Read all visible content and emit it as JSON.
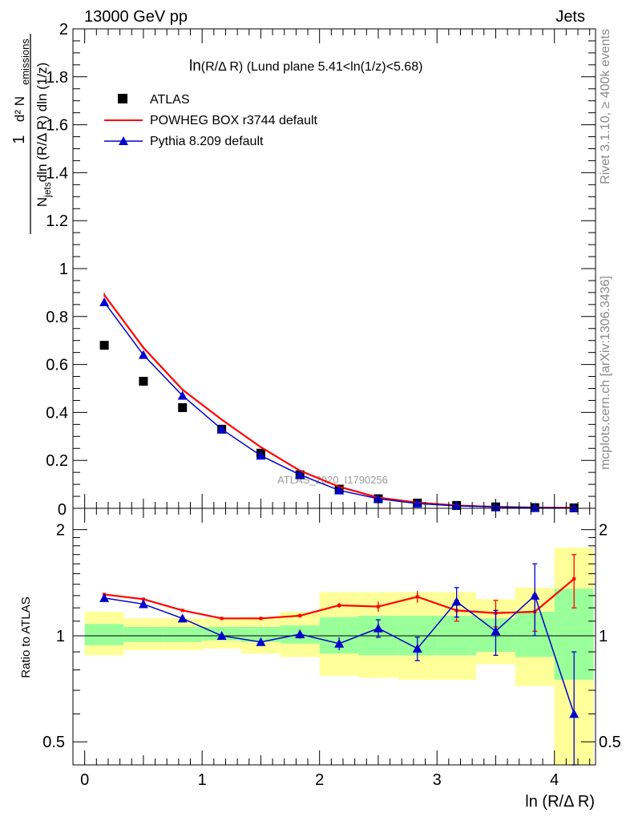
{
  "header": {
    "left": "13000 GeV pp",
    "right": "Jets",
    "side_top": "Rivet 3.1.10, ≥ 400k events",
    "side_bottom": "mcplots.cern.ch [arXiv:1306.3436]"
  },
  "chart_data": [
    {
      "type": "line",
      "panel": "main",
      "title_prefix": "ln",
      "title_rest": "(R/Δ R) (Lund plane 5.41<ln(1/z)<5.68)",
      "xlabel": "ln (R/Δ R)",
      "ylabel": "1/N_jets d²N_emissions / dln(R/Δ R) dln(1/z)",
      "watermark": "ATLAS_2020_I1790256",
      "xlim": [
        -0.1,
        4.35
      ],
      "ylim": [
        0,
        2
      ],
      "yticks": [
        {
          "v": 0.2,
          "label": "0.2"
        },
        {
          "v": 0.4,
          "label": "0.4"
        },
        {
          "v": 0.6,
          "label": "0.6"
        },
        {
          "v": 0.8,
          "label": "0.8"
        },
        {
          "v": 1.0,
          "label": "1"
        },
        {
          "v": 1.2,
          "label": "1.2"
        },
        {
          "v": 1.4,
          "label": "1.4"
        },
        {
          "v": 1.6,
          "label": "1.6"
        },
        {
          "v": 1.8,
          "label": "1.8"
        },
        {
          "v": 2.0,
          "label": "2"
        }
      ],
      "legend_position": "top-left",
      "series": [
        {
          "name": "ATLAS",
          "style": "marker-square",
          "color": "#000000",
          "x": [
            0.167,
            0.5,
            0.833,
            1.167,
            1.5,
            1.833,
            2.167,
            2.5,
            2.833,
            3.167,
            3.5,
            3.833,
            4.167
          ],
          "y": [
            0.68,
            0.53,
            0.42,
            0.33,
            0.23,
            0.14,
            0.08,
            0.04,
            0.022,
            0.012,
            0.006,
            0.003,
            0.002
          ]
        },
        {
          "name": "POWHEG BOX r3744 default",
          "style": "line",
          "color": "#ff0000",
          "x": [
            0.167,
            0.5,
            0.833,
            1.167,
            1.5,
            1.833,
            2.167,
            2.5,
            2.833,
            3.167,
            3.5,
            3.833,
            4.167
          ],
          "y": [
            0.89,
            0.67,
            0.495,
            0.37,
            0.255,
            0.157,
            0.09,
            0.045,
            0.024,
            0.012,
            0.006,
            0.003,
            0.002
          ],
          "err": [
            0.008,
            0.006,
            0.005,
            0.004,
            0.003,
            0.002,
            0.002,
            0.001,
            0.001,
            0.001,
            0.001,
            0.001,
            0.001
          ]
        },
        {
          "name": "Pythia 8.209 default",
          "style": "line-triangle",
          "color": "#0000cc",
          "x": [
            0.167,
            0.5,
            0.833,
            1.167,
            1.5,
            1.833,
            2.167,
            2.5,
            2.833,
            3.167,
            3.5,
            3.833,
            4.167
          ],
          "y": [
            0.86,
            0.64,
            0.47,
            0.33,
            0.22,
            0.14,
            0.075,
            0.04,
            0.02,
            0.01,
            0.006,
            0.003,
            0.001
          ]
        }
      ]
    },
    {
      "type": "line",
      "panel": "ratio",
      "ylabel": "Ratio to ATLAS",
      "xlabel": "ln (R/Δ R)",
      "scale": "log",
      "ylim": [
        0.43,
        2.3
      ],
      "xlim": [
        -0.1,
        4.35
      ],
      "xticks": [
        {
          "v": 0,
          "label": "0"
        },
        {
          "v": 1,
          "label": "1"
        },
        {
          "v": 2,
          "label": "2"
        },
        {
          "v": 3,
          "label": "3"
        },
        {
          "v": 4,
          "label": "4"
        }
      ],
      "yticks": [
        {
          "v": 0.5,
          "label": "0.5"
        },
        {
          "v": 1,
          "label": "1"
        },
        {
          "v": 2,
          "label": "2"
        }
      ],
      "reference_line": 1,
      "bins": [
        0.0,
        0.333,
        0.667,
        1.0,
        1.333,
        1.667,
        2.0,
        2.333,
        2.667,
        3.0,
        3.333,
        3.667,
        4.0,
        4.333
      ],
      "band_total": {
        "color": "#ffff99",
        "lo": [
          0.88,
          0.91,
          0.91,
          0.92,
          0.89,
          0.87,
          0.77,
          0.76,
          0.75,
          0.75,
          0.83,
          0.72,
          0.4
        ],
        "hi": [
          1.17,
          1.12,
          1.12,
          1.12,
          1.13,
          1.17,
          1.33,
          1.33,
          1.33,
          1.33,
          1.27,
          1.37,
          1.78
        ]
      },
      "band_stat": {
        "color": "#99ff99",
        "lo": [
          0.94,
          0.96,
          0.96,
          0.97,
          0.96,
          0.95,
          0.89,
          0.88,
          0.88,
          0.88,
          0.9,
          0.87,
          0.75
        ],
        "hi": [
          1.08,
          1.06,
          1.06,
          1.06,
          1.06,
          1.07,
          1.13,
          1.14,
          1.14,
          1.14,
          1.12,
          1.17,
          1.36
        ]
      },
      "series": [
        {
          "name": "POWHEG BOX r3744 default",
          "color": "#ff0000",
          "style": "line",
          "x": [
            0.167,
            0.5,
            0.833,
            1.167,
            1.5,
            1.833,
            2.167,
            2.5,
            2.833,
            3.167,
            3.5,
            3.833,
            4.167
          ],
          "y": [
            1.31,
            1.27,
            1.18,
            1.12,
            1.12,
            1.14,
            1.22,
            1.21,
            1.29,
            1.18,
            1.16,
            1.17,
            1.45
          ],
          "err": [
            0.012,
            0.012,
            0.012,
            0.012,
            0.012,
            0.015,
            0.02,
            0.04,
            0.05,
            0.08,
            0.1,
            0.14,
            0.25
          ]
        },
        {
          "name": "Pythia 8.209 default",
          "color": "#0000cc",
          "style": "line-triangle",
          "x": [
            0.167,
            0.5,
            0.833,
            1.167,
            1.5,
            1.833,
            2.167,
            2.5,
            2.833,
            3.167,
            3.5,
            3.833,
            4.167
          ],
          "y": [
            1.28,
            1.23,
            1.12,
            1.0,
            0.96,
            1.01,
            0.95,
            1.05,
            0.92,
            1.25,
            1.03,
            1.3,
            0.6
          ],
          "err": [
            0.012,
            0.012,
            0.012,
            0.015,
            0.02,
            0.03,
            0.04,
            0.06,
            0.07,
            0.12,
            0.15,
            0.3,
            0.3
          ]
        }
      ]
    }
  ]
}
